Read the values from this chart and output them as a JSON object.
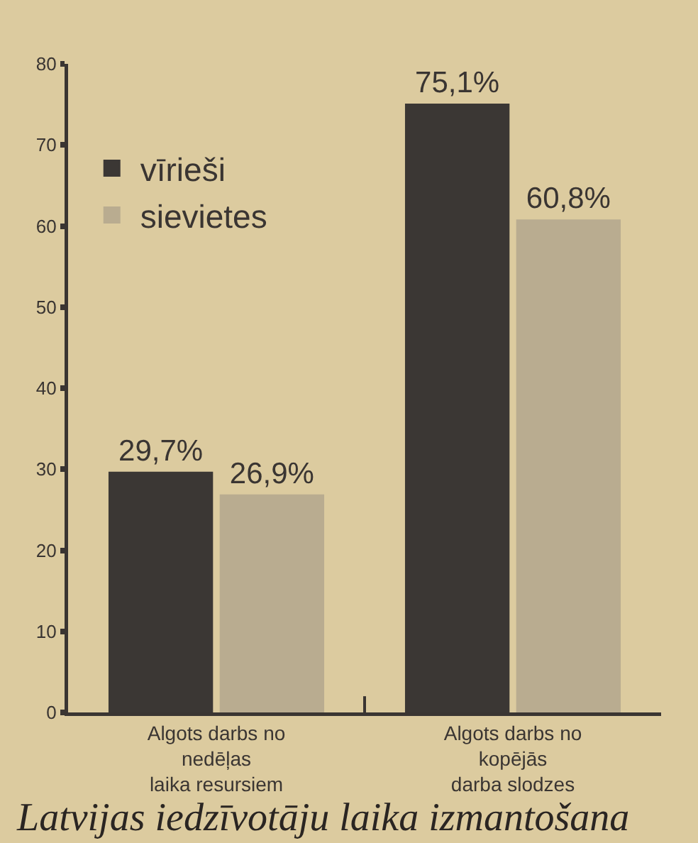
{
  "chart_data": {
    "type": "bar",
    "categories": [
      "Algots darbs no\nnedēļas\nlaika resursiem",
      "Algots darbs no\nkopējās\ndarba slodzes"
    ],
    "series": [
      {
        "name": "vīrieši",
        "color": "#3b3734",
        "values": [
          29.7,
          75.1
        ],
        "value_labels": [
          "29,7%",
          "75,1%"
        ]
      },
      {
        "name": "sievietes",
        "color": "#b9ac90",
        "values": [
          26.9,
          60.8
        ],
        "value_labels": [
          "26,9%",
          "60,8%"
        ]
      }
    ],
    "ylim": [
      0,
      80
    ],
    "yticks": [
      0,
      10,
      20,
      30,
      40,
      50,
      60,
      70,
      80
    ],
    "grid": false,
    "legend": "top left",
    "annotations": [
      "Latvijas iedzīvotāju laika izmantošana"
    ]
  }
}
